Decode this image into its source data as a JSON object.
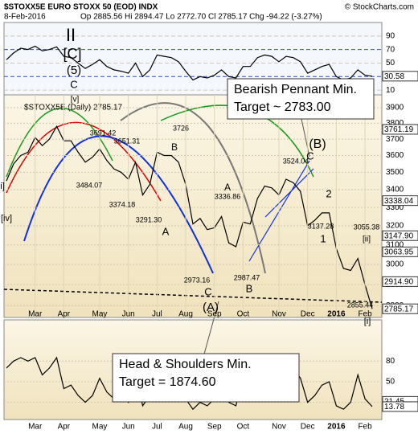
{
  "header": {
    "title": "$STOXX5E EURO STOXX 50 (EOD) INDX",
    "source": "© StockCharts.com",
    "date": "8-Feb-2016",
    "stats": "Op 2885.56 Hi 2894.47 Lo 2772.70 Cl 2785.17 Chg -94.22 (-3.27%)"
  },
  "chart_data": [
    {
      "type": "line",
      "ylim": [
        3,
        110
      ],
      "yticks": [
        10,
        30,
        50,
        70,
        90
      ],
      "series": [
        {
          "color": "#000000",
          "values": [
            55,
            65,
            72,
            70,
            75,
            68,
            70,
            74,
            60,
            58,
            50,
            42,
            48,
            55,
            45,
            40,
            38,
            35,
            50,
            30,
            40,
            62,
            60,
            58,
            52,
            38,
            25,
            30,
            28,
            32,
            40,
            30,
            28,
            45,
            45,
            58,
            62,
            60,
            52,
            60,
            58,
            52,
            35,
            40,
            45,
            48,
            30,
            25,
            28,
            40,
            32,
            30.58
          ]
        }
      ],
      "tags": [
        30.58
      ]
    },
    {
      "type": "line",
      "scale": "log",
      "legend": "$STOXX5E (Daily) 2785.17",
      "categories": [
        null,
        null,
        null,
        null,
        "Mar",
        null,
        null,
        null,
        "Apr",
        null,
        null,
        null,
        null,
        "May",
        null,
        null,
        null,
        "Jun",
        null,
        null,
        null,
        "Jul",
        null,
        null,
        null,
        "Aug",
        null,
        null,
        null,
        "Sep",
        null,
        null,
        null,
        "Oct",
        null,
        null,
        null,
        null,
        "Nov",
        null,
        null,
        null,
        "Dec",
        null,
        null,
        null,
        "2016",
        null,
        null,
        null,
        "Feb",
        null
      ],
      "ylim": [
        2745,
        3985
      ],
      "yticks": [
        2800,
        2900,
        3000,
        3100,
        3200,
        3300,
        3400,
        3500,
        3600,
        3700,
        3800,
        3900
      ],
      "series": [
        {
          "color": "#000000",
          "values": [
            3450,
            3550,
            3600,
            3620,
            3710,
            3660,
            3700,
            3780,
            3690,
            3690,
            3620,
            3560,
            3590,
            3640,
            3570,
            3520,
            3500,
            3460,
            3560,
            3370,
            3430,
            3620,
            3600,
            3600,
            3560,
            3430,
            3210,
            3240,
            3180,
            3190,
            3250,
            3110,
            3090,
            3220,
            3210,
            3350,
            3420,
            3410,
            3370,
            3460,
            3440,
            3390,
            3200,
            3230,
            3270,
            3270,
            3080,
            2980,
            2970,
            3030,
            2900,
            2785.17
          ]
        }
      ],
      "tags": [
        3761.19,
        3338.04,
        {
          "value": 3147.9,
          "label": "3147.90"
        },
        3063.95,
        {
          "value": 2914.9,
          "label": "2914.90"
        },
        2785.17
      ],
      "annotations": [
        "II",
        "[C]",
        "(5)",
        "C",
        "[v]",
        "i]",
        "[iv]",
        "3691.42",
        "3651.31",
        "3726",
        "B",
        "3484.07",
        "3374.18",
        "3291.30",
        "A",
        "3336.86",
        "A",
        "2973.16",
        "C",
        "(A)",
        "2987.47",
        "B",
        "3524.04",
        "(B)",
        "C",
        "2",
        "3137.28",
        "1",
        "3055.38",
        "[ii]",
        "2855.44",
        "[i]"
      ],
      "boxes": [
        [
          "Bearish Pennant Min.",
          "Target ~ 2783.00"
        ],
        [
          "Head & Shoulders Min.",
          "Target = 1874.60"
        ]
      ]
    },
    {
      "type": "line",
      "ylim": [
        -5,
        140
      ],
      "yticks": [
        20,
        50,
        80
      ],
      "series": [
        {
          "color": "#000000",
          "values": [
            70,
            80,
            85,
            80,
            85,
            60,
            70,
            85,
            40,
            45,
            30,
            20,
            30,
            55,
            35,
            25,
            30,
            20,
            60,
            15,
            30,
            80,
            75,
            70,
            60,
            25,
            10,
            20,
            15,
            25,
            45,
            20,
            15,
            60,
            55,
            80,
            85,
            75,
            45,
            75,
            70,
            55,
            20,
            30,
            45,
            50,
            15,
            10,
            20,
            60,
            25,
            13.78
          ]
        }
      ],
      "tags": [
        21.45,
        13.78
      ]
    }
  ]
}
